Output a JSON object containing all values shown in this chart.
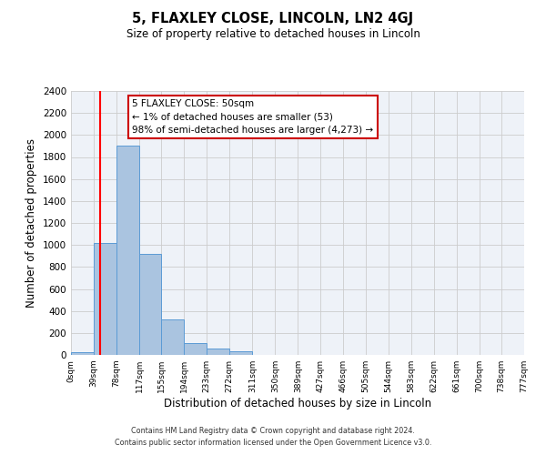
{
  "title": "5, FLAXLEY CLOSE, LINCOLN, LN2 4GJ",
  "subtitle": "Size of property relative to detached houses in Lincoln",
  "xlabel": "Distribution of detached houses by size in Lincoln",
  "ylabel": "Number of detached properties",
  "bar_edges": [
    0,
    39,
    78,
    117,
    155,
    194,
    233,
    272,
    311,
    350,
    389,
    427,
    466,
    505,
    544,
    583,
    622,
    661,
    700,
    738,
    777
  ],
  "bar_heights": [
    25,
    1020,
    1900,
    920,
    325,
    110,
    55,
    30,
    0,
    0,
    0,
    0,
    0,
    0,
    0,
    0,
    0,
    0,
    0,
    0
  ],
  "bar_color": "#aac4e0",
  "bar_edgecolor": "#5b9bd5",
  "tick_labels": [
    "0sqm",
    "39sqm",
    "78sqm",
    "117sqm",
    "155sqm",
    "194sqm",
    "233sqm",
    "272sqm",
    "311sqm",
    "350sqm",
    "389sqm",
    "427sqm",
    "466sqm",
    "505sqm",
    "544sqm",
    "583sqm",
    "622sqm",
    "661sqm",
    "700sqm",
    "738sqm",
    "777sqm"
  ],
  "ylim": [
    0,
    2400
  ],
  "yticks": [
    0,
    200,
    400,
    600,
    800,
    1000,
    1200,
    1400,
    1600,
    1800,
    2000,
    2200,
    2400
  ],
  "red_line_x": 50,
  "annotation_title": "5 FLAXLEY CLOSE: 50sqm",
  "annotation_line1": "← 1% of detached houses are smaller (53)",
  "annotation_line2": "98% of semi-detached houses are larger (4,273) →",
  "box_color": "#ffffff",
  "box_edgecolor": "#cc0000",
  "grid_color": "#cccccc",
  "background_color": "#eef2f8",
  "footer1": "Contains HM Land Registry data © Crown copyright and database right 2024.",
  "footer2": "Contains public sector information licensed under the Open Government Licence v3.0."
}
